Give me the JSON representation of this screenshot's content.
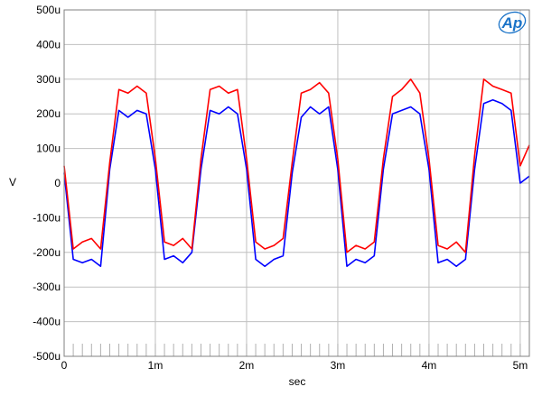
{
  "chart_data": {
    "type": "line",
    "brand_logo": "Ap",
    "xlabel": "sec",
    "ylabel": "V",
    "xlim": [
      0,
      0.0051
    ],
    "ylim": [
      -0.0005,
      0.0005
    ],
    "x_ticks": [
      {
        "value": 0,
        "label": "0"
      },
      {
        "value": 0.001,
        "label": "1m"
      },
      {
        "value": 0.002,
        "label": "2m"
      },
      {
        "value": 0.003,
        "label": "3m"
      },
      {
        "value": 0.004,
        "label": "4m"
      },
      {
        "value": 0.005,
        "label": "5m"
      }
    ],
    "y_ticks": [
      {
        "value": 0.0005,
        "label": "500u"
      },
      {
        "value": 0.0004,
        "label": "400u"
      },
      {
        "value": 0.0003,
        "label": "300u"
      },
      {
        "value": 0.0002,
        "label": "200u"
      },
      {
        "value": 0.0001,
        "label": "100u"
      },
      {
        "value": 0,
        "label": "0"
      },
      {
        "value": -0.0001,
        "label": "-100u"
      },
      {
        "value": -0.0002,
        "label": "-200u"
      },
      {
        "value": -0.0003,
        "label": "-300u"
      },
      {
        "value": -0.0004,
        "label": "-400u"
      },
      {
        "value": -0.0005,
        "label": "-500u"
      }
    ],
    "grid": true,
    "legend": "none",
    "colors": {
      "background": "#ffffff",
      "grid": "#c0c0c0",
      "frame": "#808080",
      "logo": "#1a73c8"
    },
    "series": [
      {
        "color": "#0000ff",
        "x": [
          0.0,
          0.0001,
          0.0002,
          0.0003,
          0.0004,
          0.0005,
          0.0006,
          0.0007,
          0.0008,
          0.0009,
          0.001,
          0.0011,
          0.0012,
          0.0013,
          0.0014,
          0.0015,
          0.0016,
          0.0017,
          0.0018,
          0.0019,
          0.002,
          0.0021,
          0.0022,
          0.0023,
          0.0024,
          0.0025,
          0.0026,
          0.0027,
          0.0028,
          0.0029,
          0.003,
          0.0031,
          0.0032,
          0.0033,
          0.0034,
          0.0035,
          0.0036,
          0.0037,
          0.0038,
          0.0039,
          0.004,
          0.0041,
          0.0042,
          0.0043,
          0.0044,
          0.0045,
          0.0046,
          0.0047,
          0.0048,
          0.0049,
          0.005,
          0.0051
        ],
        "y": [
          3e-05,
          -0.00022,
          -0.00023,
          -0.00022,
          -0.00024,
          4e-05,
          0.00021,
          0.00019,
          0.00021,
          0.0002,
          4e-05,
          -0.00022,
          -0.00021,
          -0.00023,
          -0.0002,
          4e-05,
          0.00021,
          0.0002,
          0.00022,
          0.0002,
          4e-05,
          -0.00022,
          -0.00024,
          -0.00022,
          -0.00021,
          3e-05,
          0.00019,
          0.00022,
          0.0002,
          0.00022,
          4e-05,
          -0.00024,
          -0.00022,
          -0.00023,
          -0.00021,
          4e-05,
          0.0002,
          0.00021,
          0.00022,
          0.0002,
          4e-05,
          -0.00023,
          -0.00022,
          -0.00024,
          -0.00022,
          4e-05,
          0.00023,
          0.00024,
          0.00023,
          0.00021,
          0.0,
          2e-05
        ]
      },
      {
        "color": "#ff0000",
        "x": [
          0.0,
          0.0001,
          0.0002,
          0.0003,
          0.0004,
          0.0005,
          0.0006,
          0.0007,
          0.0008,
          0.0009,
          0.001,
          0.0011,
          0.0012,
          0.0013,
          0.0014,
          0.0015,
          0.0016,
          0.0017,
          0.0018,
          0.0019,
          0.002,
          0.0021,
          0.0022,
          0.0023,
          0.0024,
          0.0025,
          0.0026,
          0.0027,
          0.0028,
          0.0029,
          0.003,
          0.0031,
          0.0032,
          0.0033,
          0.0034,
          0.0035,
          0.0036,
          0.0037,
          0.0038,
          0.0039,
          0.004,
          0.0041,
          0.0042,
          0.0043,
          0.0044,
          0.0045,
          0.0046,
          0.0047,
          0.0048,
          0.0049,
          0.005,
          0.0051
        ],
        "y": [
          5e-05,
          -0.00019,
          -0.00017,
          -0.00016,
          -0.00019,
          6e-05,
          0.00027,
          0.00026,
          0.00028,
          0.00026,
          7e-05,
          -0.00017,
          -0.00018,
          -0.00016,
          -0.00019,
          7e-05,
          0.00027,
          0.00028,
          0.00026,
          0.00027,
          7e-05,
          -0.00017,
          -0.00019,
          -0.00018,
          -0.00016,
          6e-05,
          0.00026,
          0.00027,
          0.00029,
          0.00026,
          7e-05,
          -0.0002,
          -0.00018,
          -0.00019,
          -0.00017,
          7e-05,
          0.00025,
          0.00027,
          0.0003,
          0.00026,
          7e-05,
          -0.00018,
          -0.00019,
          -0.00017,
          -0.0002,
          8e-05,
          0.0003,
          0.00028,
          0.00027,
          0.00026,
          5e-05,
          0.00011
        ]
      }
    ]
  }
}
